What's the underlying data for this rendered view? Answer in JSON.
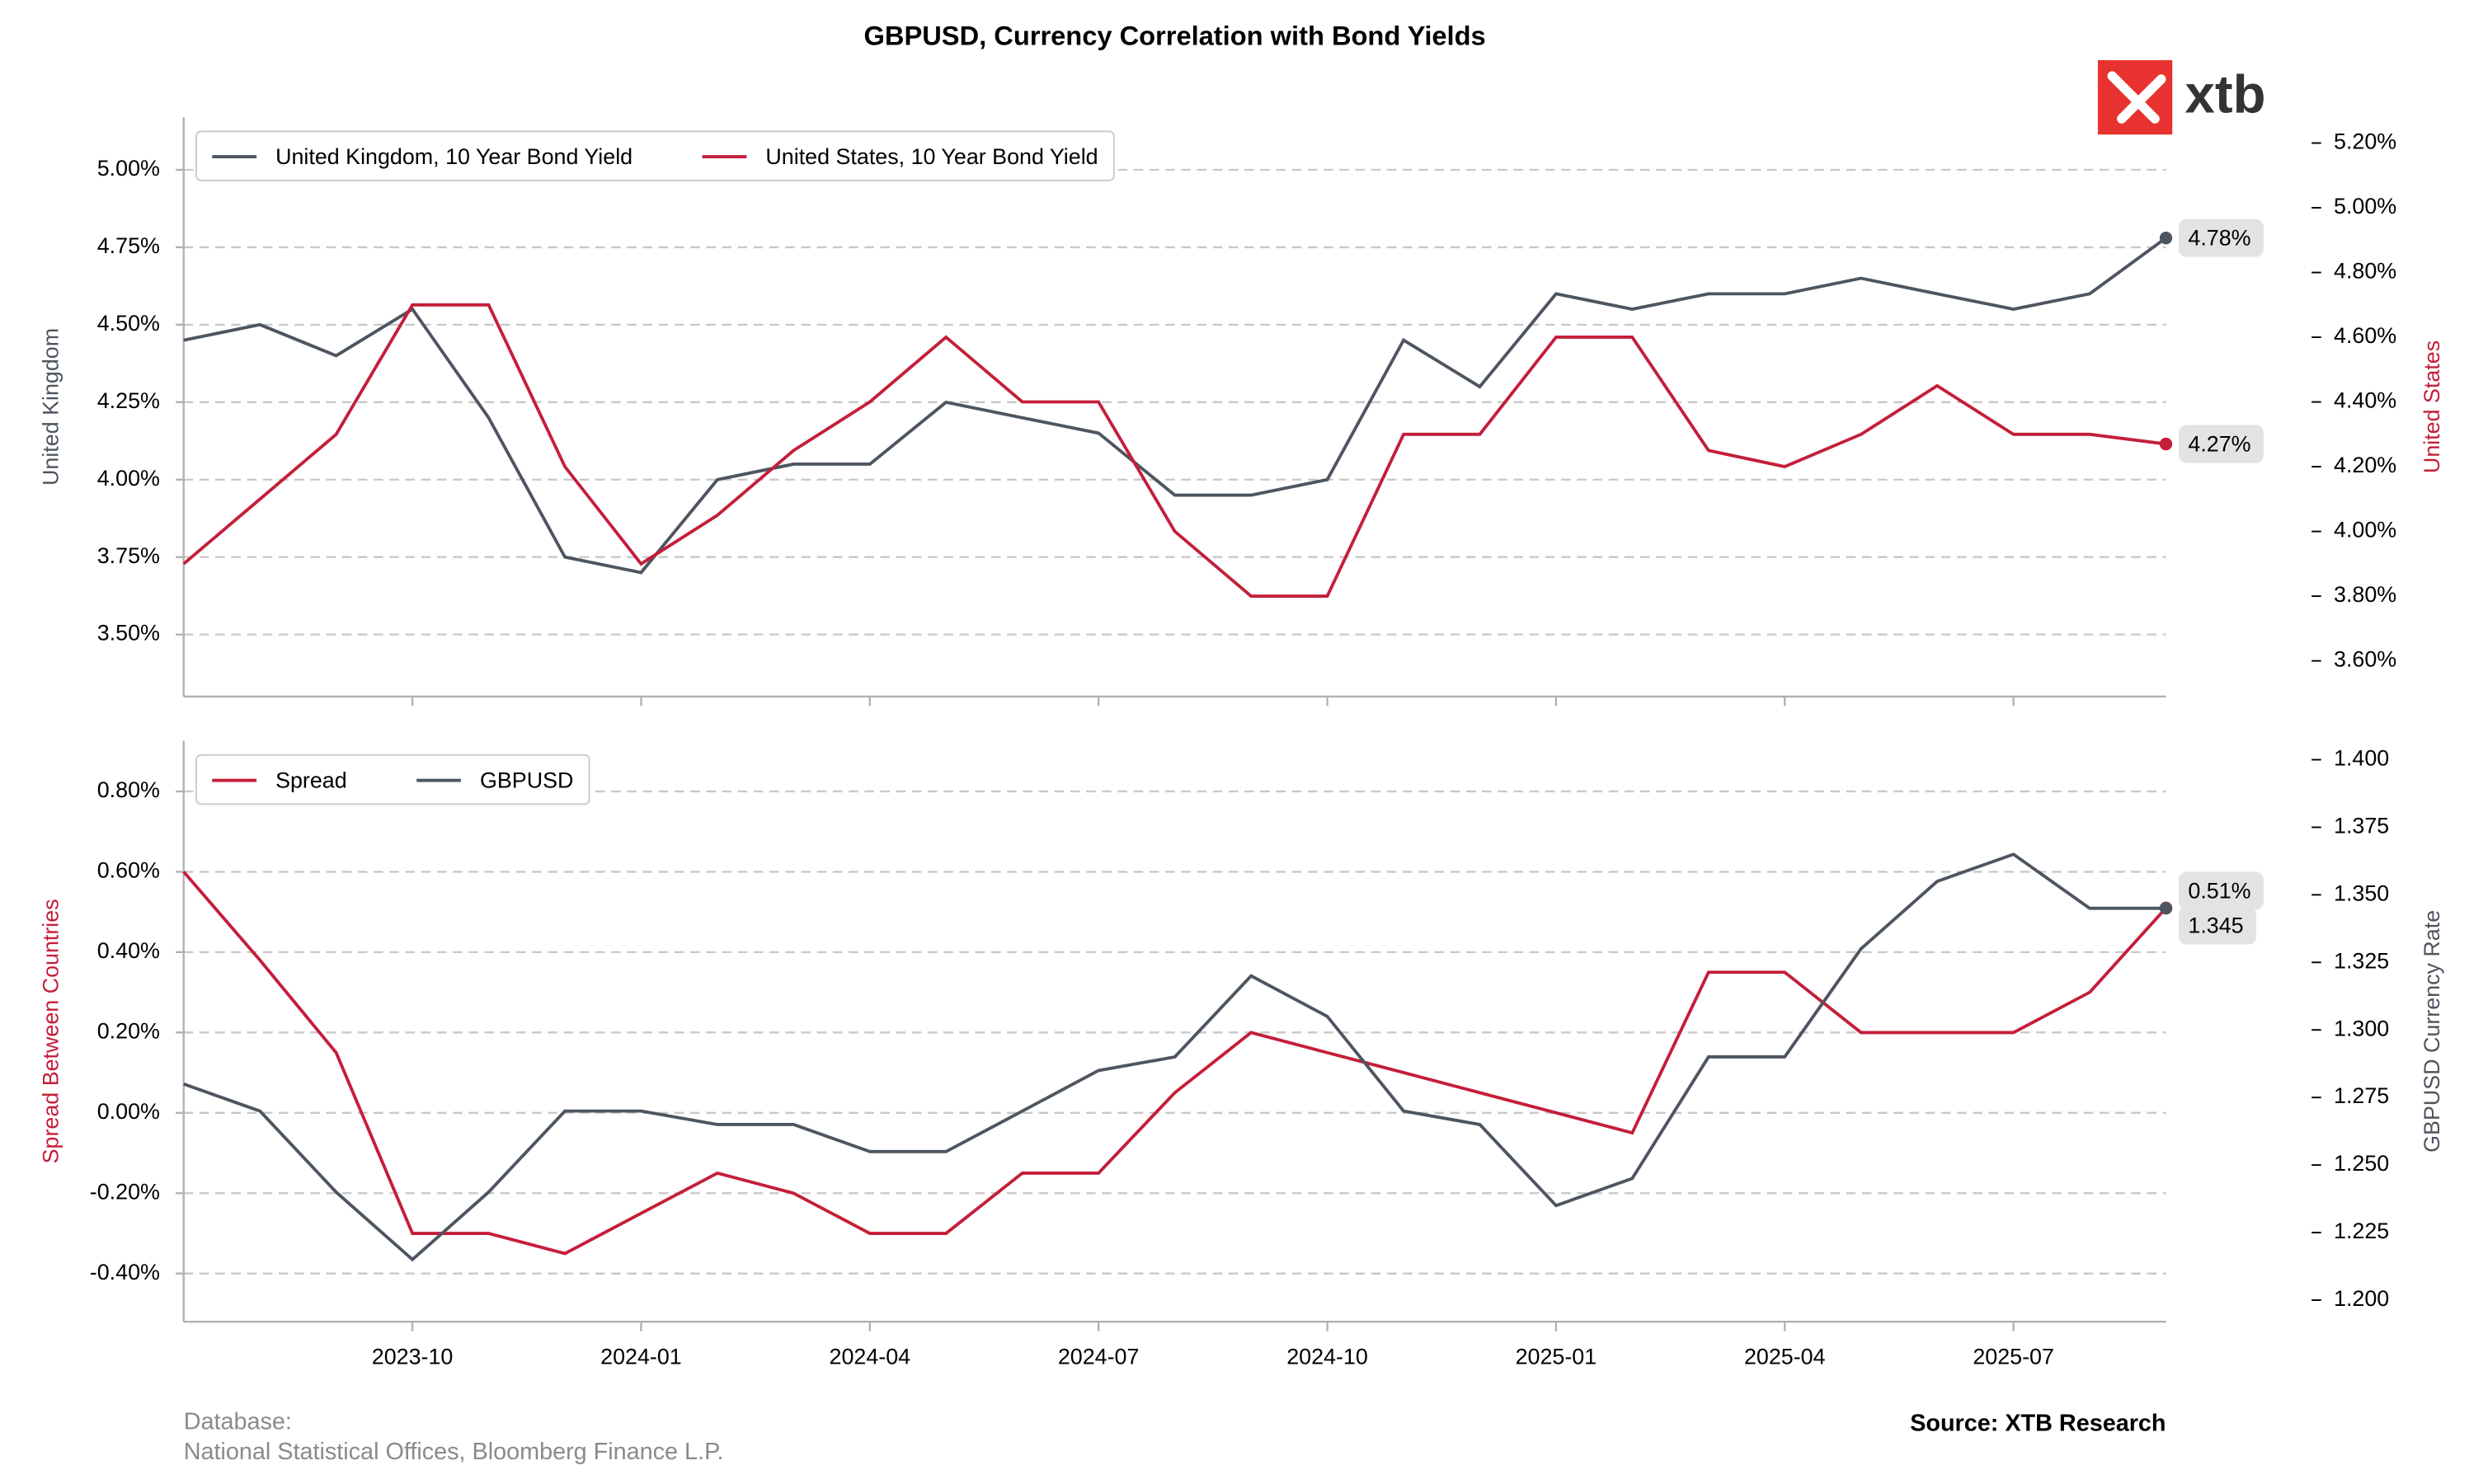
{
  "title": "GBPUSD, Currency Correlation with Bond Yields",
  "logo": "xtb",
  "footer": {
    "database_label": "Database:",
    "database": "National Statistical Offices, Bloomberg Finance L.P.",
    "source": "Source: XTB Research"
  },
  "chart_data": [
    {
      "type": "line",
      "x": [
        "2023-07",
        "2023-08",
        "2023-09",
        "2023-10",
        "2023-11",
        "2023-12",
        "2024-01",
        "2024-02",
        "2024-03",
        "2024-04",
        "2024-05",
        "2024-06",
        "2024-07",
        "2024-08",
        "2024-09",
        "2024-10",
        "2024-11",
        "2024-12",
        "2025-01",
        "2025-02",
        "2025-03",
        "2025-04",
        "2025-05",
        "2025-06",
        "2025-07",
        "2025-08",
        "2025-09"
      ],
      "xlim": [
        "2023-07",
        "2025-09"
      ],
      "xticks": [
        "2023-10",
        "2024-01",
        "2024-04",
        "2024-07",
        "2024-10",
        "2025-01",
        "2025-04",
        "2025-07"
      ],
      "show_xtick_labels": false,
      "ylabel": "United Kingdom",
      "y2label": "United States",
      "ylim": [
        3.3,
        5.17
      ],
      "yticks": [
        {
          "value": 3.5,
          "label": "3.50%"
        },
        {
          "value": 3.75,
          "label": "3.75%"
        },
        {
          "value": 4.0,
          "label": "4.00%"
        },
        {
          "value": 4.25,
          "label": "4.25%"
        },
        {
          "value": 4.5,
          "label": "4.50%"
        },
        {
          "value": 4.75,
          "label": "4.75%"
        },
        {
          "value": 5.0,
          "label": "5.00%"
        }
      ],
      "y2lim": [
        3.49,
        5.28
      ],
      "y2ticks": [
        {
          "value": 3.6,
          "label": "3.60%"
        },
        {
          "value": 3.8,
          "label": "3.80%"
        },
        {
          "value": 4.0,
          "label": "4.00%"
        },
        {
          "value": 4.2,
          "label": "4.20%"
        },
        {
          "value": 4.4,
          "label": "4.40%"
        },
        {
          "value": 4.6,
          "label": "4.60%"
        },
        {
          "value": 4.8,
          "label": "4.80%"
        },
        {
          "value": 5.0,
          "label": "5.00%"
        },
        {
          "value": 5.2,
          "label": "5.20%"
        }
      ],
      "grid": true,
      "legend": "upper left",
      "series": [
        {
          "name": "United Kingdom, 10 Year Bond Yield",
          "color": "#4d5560",
          "axis": "y",
          "values": [
            4.45,
            4.5,
            4.4,
            4.55,
            4.2,
            3.75,
            3.7,
            4.0,
            4.05,
            4.05,
            4.25,
            4.2,
            4.15,
            3.95,
            3.95,
            4.0,
            4.45,
            4.3,
            4.6,
            4.55,
            4.6,
            4.6,
            4.65,
            4.6,
            4.55,
            4.6,
            4.78
          ],
          "value_labels": [
            null,
            null,
            null,
            null,
            null,
            null,
            null,
            null,
            null,
            null,
            null,
            null,
            null,
            null,
            null,
            null,
            null,
            null,
            null,
            null,
            null,
            null,
            null,
            null,
            null,
            null,
            "4.78%"
          ]
        },
        {
          "name": "United States, 10 Year Bond Yield",
          "color": "#c41e3a",
          "axis": "y2",
          "values": [
            3.9,
            4.1,
            4.3,
            4.7,
            4.7,
            4.2,
            3.9,
            4.05,
            4.25,
            4.4,
            4.6,
            4.4,
            4.4,
            4.0,
            3.8,
            3.8,
            4.3,
            4.3,
            4.6,
            4.6,
            4.25,
            4.2,
            4.3,
            4.45,
            4.3,
            4.3,
            4.27
          ],
          "value_labels": [
            null,
            null,
            null,
            null,
            null,
            null,
            null,
            null,
            null,
            null,
            null,
            null,
            null,
            null,
            null,
            null,
            null,
            null,
            null,
            null,
            null,
            null,
            null,
            null,
            null,
            null,
            "4.27%"
          ]
        }
      ]
    },
    {
      "type": "line",
      "x": [
        "2023-07",
        "2023-08",
        "2023-09",
        "2023-10",
        "2023-11",
        "2023-12",
        "2024-01",
        "2024-02",
        "2024-03",
        "2024-04",
        "2024-05",
        "2024-06",
        "2024-07",
        "2024-08",
        "2024-09",
        "2024-10",
        "2024-11",
        "2024-12",
        "2025-01",
        "2025-02",
        "2025-03",
        "2025-04",
        "2025-05",
        "2025-06",
        "2025-07",
        "2025-08",
        "2025-09"
      ],
      "xlim": [
        "2023-07",
        "2025-09"
      ],
      "xticks": [
        "2023-10",
        "2024-01",
        "2024-04",
        "2024-07",
        "2024-10",
        "2025-01",
        "2025-04",
        "2025-07"
      ],
      "show_xtick_labels": true,
      "ylabel": "Spread Between Countries",
      "y2label": "GBPUSD Currency Rate",
      "ylim": [
        -0.52,
        0.926
      ],
      "yticks": [
        {
          "value": -0.4,
          "label": "-0.40%"
        },
        {
          "value": -0.2,
          "label": "-0.20%"
        },
        {
          "value": 0.0,
          "label": "0.00%"
        },
        {
          "value": 0.2,
          "label": "0.20%"
        },
        {
          "value": 0.4,
          "label": "0.40%"
        },
        {
          "value": 0.6,
          "label": "0.60%"
        },
        {
          "value": 0.8,
          "label": "0.80%"
        }
      ],
      "y2lim": [
        1.192,
        1.407
      ],
      "y2ticks": [
        {
          "value": 1.2,
          "label": "1.200"
        },
        1.225,
        {
          "value": 1.25,
          "label": "1.250"
        },
        1.275,
        {
          "value": 1.3,
          "label": "1.300"
        },
        1.325,
        {
          "value": 1.35,
          "label": "1.350"
        },
        1.375,
        {
          "value": 1.4,
          "label": "1.400"
        }
      ],
      "grid": true,
      "legend": "upper left",
      "series": [
        {
          "name": "Spread",
          "color": "#c41e3a",
          "axis": "y",
          "values": [
            0.6,
            0.38,
            0.15,
            -0.3,
            -0.3,
            -0.35,
            -0.25,
            -0.15,
            -0.2,
            -0.3,
            -0.3,
            -0.15,
            -0.15,
            0.05,
            0.2,
            0.15,
            0.1,
            0.05,
            0.0,
            -0.05,
            0.35,
            0.35,
            0.2,
            0.2,
            0.2,
            0.3,
            0.51
          ],
          "value_labels": [
            null,
            null,
            null,
            null,
            null,
            null,
            null,
            null,
            null,
            null,
            null,
            null,
            null,
            null,
            null,
            null,
            null,
            null,
            null,
            null,
            null,
            null,
            null,
            null,
            null,
            null,
            "0.51%"
          ]
        },
        {
          "name": "GBPUSD",
          "color": "#4d5560",
          "axis": "y2",
          "values": [
            1.28,
            1.27,
            1.24,
            1.215,
            1.24,
            1.27,
            1.27,
            1.265,
            1.265,
            1.255,
            1.255,
            1.27,
            1.285,
            1.29,
            1.32,
            1.305,
            1.27,
            1.265,
            1.235,
            1.245,
            1.29,
            1.29,
            1.33,
            1.355,
            1.365,
            1.345,
            1.345
          ],
          "value_labels": [
            null,
            null,
            null,
            null,
            null,
            null,
            null,
            null,
            null,
            null,
            null,
            null,
            null,
            null,
            null,
            null,
            null,
            null,
            null,
            null,
            null,
            null,
            null,
            null,
            null,
            null,
            "1.345"
          ]
        }
      ]
    }
  ]
}
